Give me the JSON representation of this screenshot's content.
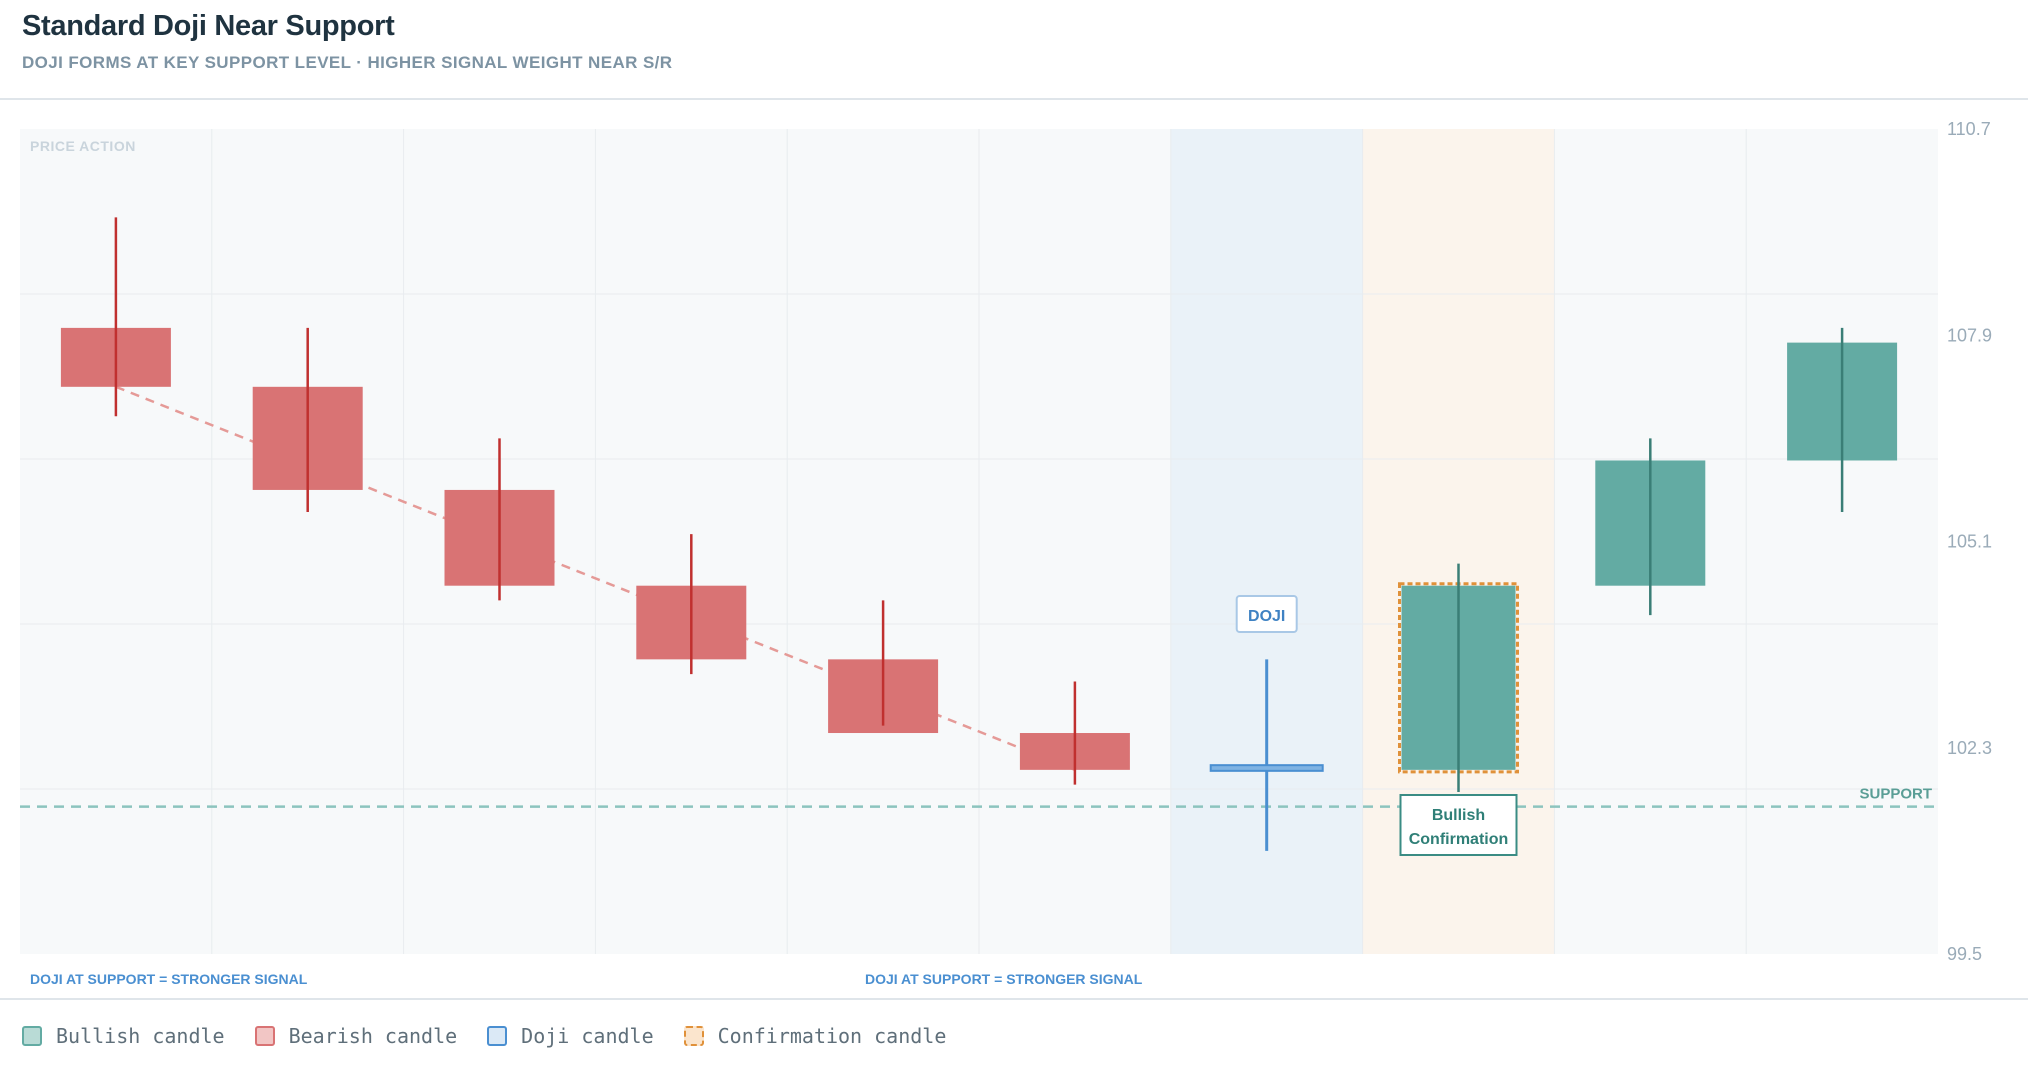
{
  "header": {
    "title": "Standard Doji Near Support",
    "subtitle": "DOJI FORMS AT KEY SUPPORT LEVEL · HIGHER SIGNAL WEIGHT NEAR S/R"
  },
  "colors": {
    "bullish": "#63aba3",
    "bullish_wick": "#3a7e76",
    "bearish": "#d97374",
    "bearish_wick": "#c0302f",
    "doji": "#4a8fd1",
    "confirmation_border": "#e0913a",
    "support_line": "#8cc4be"
  },
  "chart_data": {
    "type": "candlestick",
    "panel_label": "PRICE ACTION",
    "y_ticks": [
      "110.7",
      "107.9",
      "105.1",
      "102.3",
      "99.5"
    ],
    "ylim": [
      99.5,
      110.7
    ],
    "grid": true,
    "support": {
      "label": "SUPPORT",
      "value": 101.5
    },
    "candles": [
      {
        "open": 108.0,
        "high": 109.5,
        "low": 106.8,
        "close": 107.2,
        "kind": "bearish"
      },
      {
        "open": 107.2,
        "high": 108.0,
        "low": 105.5,
        "close": 105.8,
        "kind": "bearish"
      },
      {
        "open": 105.8,
        "high": 106.5,
        "low": 104.3,
        "close": 104.5,
        "kind": "bearish"
      },
      {
        "open": 104.5,
        "high": 105.2,
        "low": 103.3,
        "close": 103.5,
        "kind": "bearish"
      },
      {
        "open": 103.5,
        "high": 104.3,
        "low": 102.6,
        "close": 102.5,
        "kind": "bearish"
      },
      {
        "open": 102.5,
        "high": 103.2,
        "low": 101.8,
        "close": 102.0,
        "kind": "bearish"
      },
      {
        "open": 102.0,
        "high": 103.5,
        "low": 100.9,
        "close": 102.05,
        "kind": "doji"
      },
      {
        "open": 102.0,
        "high": 104.8,
        "low": 101.7,
        "close": 104.5,
        "kind": "bullish",
        "confirmation": true
      },
      {
        "open": 104.5,
        "high": 106.5,
        "low": 104.1,
        "close": 106.2,
        "kind": "bullish"
      },
      {
        "open": 106.2,
        "high": 108.0,
        "low": 105.5,
        "close": 107.8,
        "kind": "bullish"
      }
    ],
    "trend_line": {
      "from_index": 0,
      "to_index": 5
    },
    "highlight_zones": [
      {
        "index": 6,
        "kind": "doji"
      },
      {
        "index": 7,
        "kind": "confirmation"
      }
    ],
    "annotations": {
      "doji": "DOJI",
      "confirmation_line1": "Bullish",
      "confirmation_line2": "Confirmation",
      "bottom_left": "DOJI AT SUPPORT = STRONGER SIGNAL",
      "bottom_center": "DOJI AT SUPPORT = STRONGER SIGNAL"
    }
  },
  "legend": [
    {
      "label": "Bullish candle",
      "kind": "bullish"
    },
    {
      "label": "Bearish candle",
      "kind": "bearish"
    },
    {
      "label": "Doji candle",
      "kind": "doji"
    },
    {
      "label": "Confirmation candle",
      "kind": "confirmation"
    }
  ]
}
